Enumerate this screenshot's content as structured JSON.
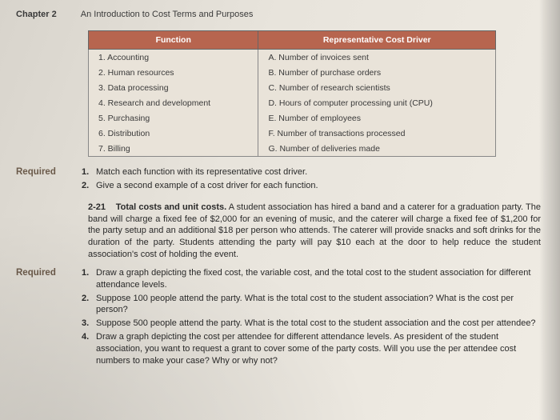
{
  "header": {
    "chapter": "Chapter 2",
    "title": "An Introduction to Cost Terms and Purposes"
  },
  "table": {
    "col1": "Function",
    "col2": "Representative Cost Driver",
    "rows": [
      {
        "f": "1. Accounting",
        "d": "A. Number of invoices sent"
      },
      {
        "f": "2. Human resources",
        "d": "B. Number of purchase orders"
      },
      {
        "f": "3. Data processing",
        "d": "C. Number of research scientists"
      },
      {
        "f": "4. Research and development",
        "d": "D. Hours of computer processing unit (CPU)"
      },
      {
        "f": "5. Purchasing",
        "d": "E. Number of employees"
      },
      {
        "f": "6. Distribution",
        "d": "F. Number of transactions processed"
      },
      {
        "f": "7. Billing",
        "d": "G. Number of deliveries made"
      }
    ]
  },
  "labels": {
    "required": "Required"
  },
  "req1": [
    {
      "n": "1.",
      "t": "Match each function with its representative cost driver."
    },
    {
      "n": "2.",
      "t": "Give a second example of a cost driver for each function."
    }
  ],
  "problem": {
    "num": "2-21",
    "title": "Total costs and unit costs.",
    "body": " A student association has hired a band and a caterer for a graduation party. The band will charge a fixed fee of $2,000 for an evening of music, and the caterer will charge a fixed fee of $1,200 for the party setup and an additional $18 per person who attends. The caterer will provide snacks and soft drinks for the duration of the party. Students attending the party will pay $10 each at the door to help reduce the student association's cost of holding the event."
  },
  "req2": [
    {
      "n": "1.",
      "t": "Draw a graph depicting the fixed cost, the variable cost, and the total cost to the student association for different attendance levels."
    },
    {
      "n": "2.",
      "t": "Suppose 100 people attend the party. What is the total cost to the student association? What is the cost per person?"
    },
    {
      "n": "3.",
      "t": "Suppose 500 people attend the party. What is the total cost to the student association and the cost per attendee?"
    },
    {
      "n": "4.",
      "t": "Draw a graph depicting the cost per attendee for different attendance levels. As president of the student association, you want to request a grant to cover some of the party costs. Will you use the per attendee cost numbers to make your case? Why or why not?"
    }
  ]
}
